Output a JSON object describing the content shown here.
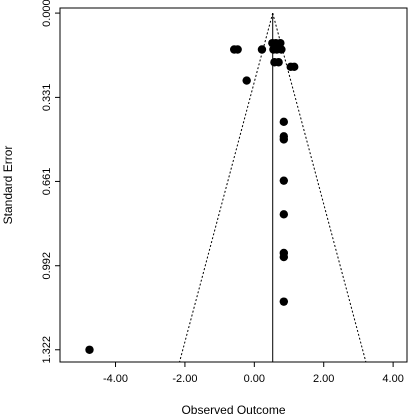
{
  "chart_data": {
    "type": "scatter",
    "title": "",
    "xlabel": "Observed Outcome",
    "ylabel": "Standard Error",
    "x_ticks": [
      -4,
      -2,
      0,
      2,
      4
    ],
    "x_tick_labels": [
      "-4.00",
      "-2.00",
      "0.00",
      "2.00",
      "4.00"
    ],
    "y_ticks": [
      0,
      0.331,
      0.661,
      0.992,
      1.322
    ],
    "y_tick_labels": [
      "0.000",
      "0.331",
      "0.661",
      "0.992",
      "1.322"
    ],
    "xlim": [
      -5.6,
      4.4
    ],
    "ylim": [
      1.37,
      -0.02
    ],
    "y_reversed": true,
    "summary_estimate": 0.53,
    "funnel_z": 1.96,
    "grid": false,
    "points": [
      {
        "x": -0.58,
        "y": 0.143
      },
      {
        "x": -0.48,
        "y": 0.143
      },
      {
        "x": 0.22,
        "y": 0.143
      },
      {
        "x": 0.52,
        "y": 0.118
      },
      {
        "x": 0.62,
        "y": 0.118
      },
      {
        "x": 0.75,
        "y": 0.118
      },
      {
        "x": 0.55,
        "y": 0.143
      },
      {
        "x": 0.65,
        "y": 0.143
      },
      {
        "x": 0.78,
        "y": 0.143
      },
      {
        "x": 0.58,
        "y": 0.193
      },
      {
        "x": 0.7,
        "y": 0.193
      },
      {
        "x": 1.05,
        "y": 0.211
      },
      {
        "x": 1.15,
        "y": 0.211
      },
      {
        "x": -0.22,
        "y": 0.265
      },
      {
        "x": 0.85,
        "y": 0.427
      },
      {
        "x": 0.85,
        "y": 0.484
      },
      {
        "x": 0.85,
        "y": 0.496
      },
      {
        "x": 0.85,
        "y": 0.658
      },
      {
        "x": 0.85,
        "y": 0.79
      },
      {
        "x": 0.85,
        "y": 0.942
      },
      {
        "x": 0.85,
        "y": 0.958
      },
      {
        "x": 0.85,
        "y": 1.133
      },
      {
        "x": -4.75,
        "y": 1.322
      }
    ],
    "colors": {
      "points": "#000000",
      "lines": "#000000",
      "background": "#ffffff"
    }
  }
}
